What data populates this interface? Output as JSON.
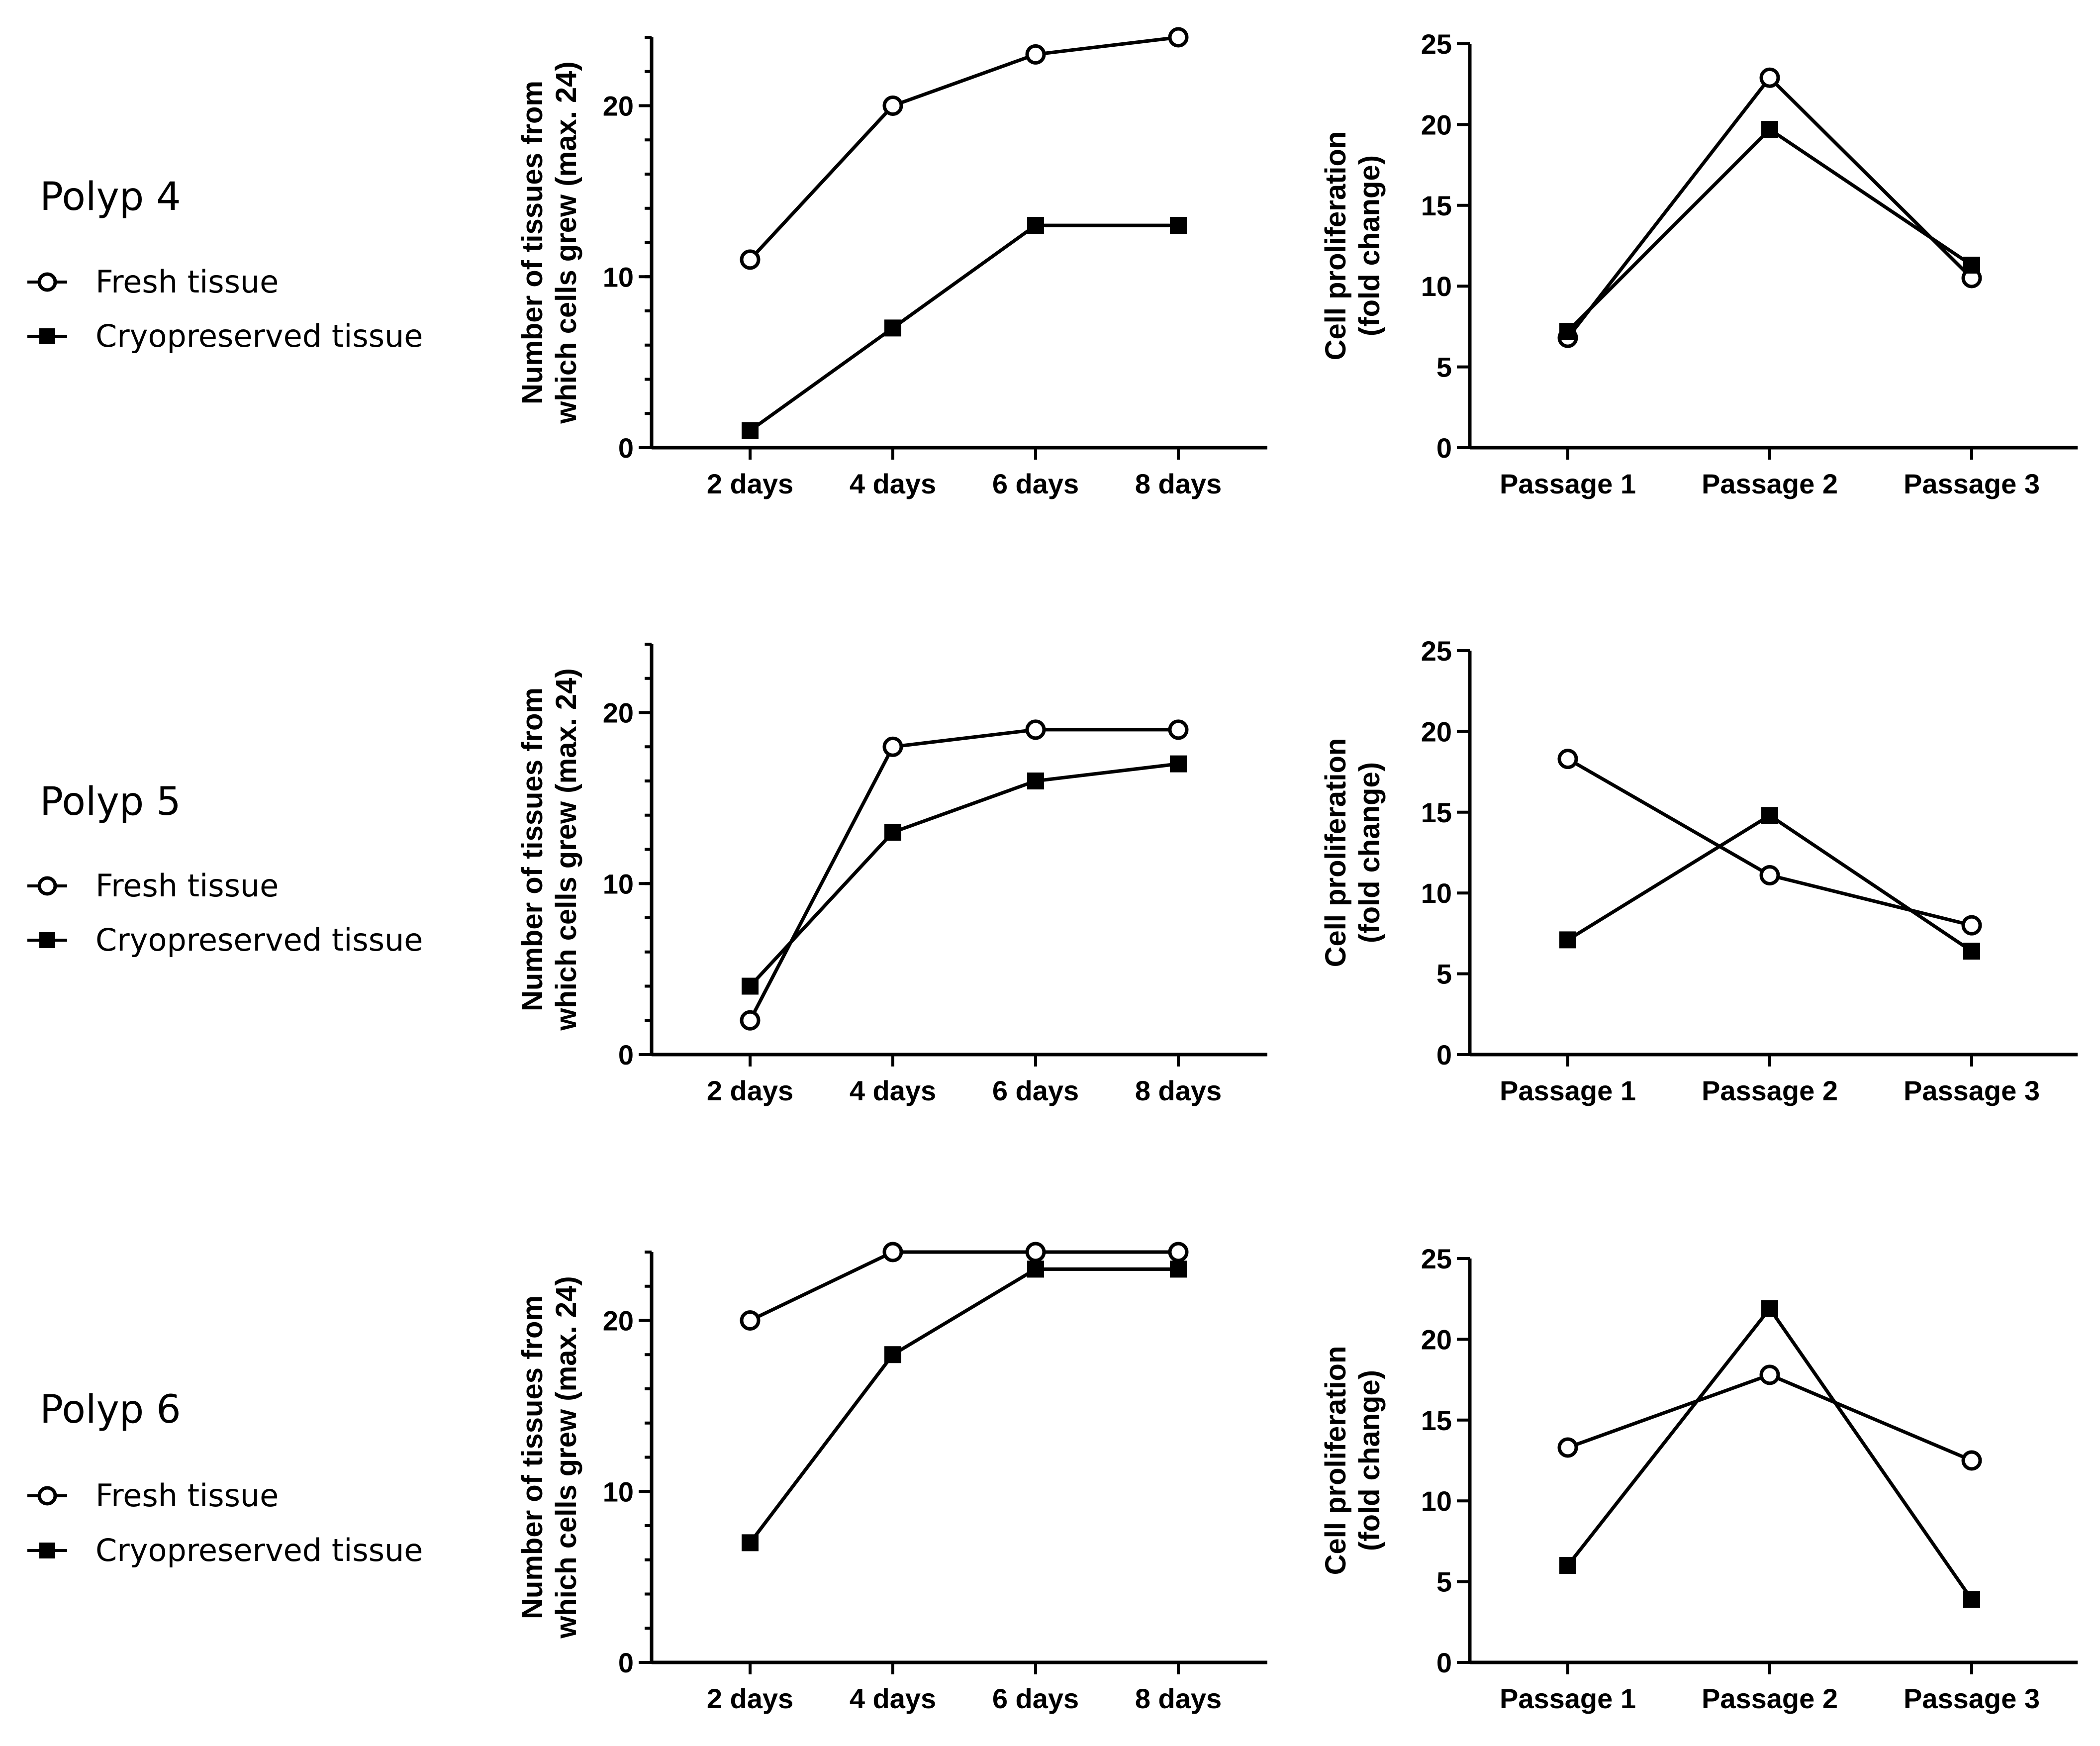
{
  "legend": {
    "fresh_label": "Fresh tissue",
    "cryo_label": "Cryopreserved tissue",
    "fresh_marker": "open-circle",
    "cryo_marker": "filled-square"
  },
  "rows": [
    {
      "label": "Polyp 4"
    },
    {
      "label": "Polyp 5"
    },
    {
      "label": "Polyp 6"
    }
  ],
  "chart_data": [
    {
      "id": "p4-growth",
      "type": "line",
      "row": 0,
      "panel": "growth",
      "title": "",
      "xlabel": "",
      "ylabel": [
        "Number of tissues from",
        "which cells grew (max. 24)"
      ],
      "categories": [
        "2 days",
        "4 days",
        "6 days",
        "8 days"
      ],
      "ylim": [
        0,
        24
      ],
      "yticks": [
        0,
        10,
        20
      ],
      "y_minor_step": 2,
      "series": [
        {
          "name": "Fresh tissue",
          "marker": "open-circle",
          "values": [
            11,
            20,
            23,
            24
          ]
        },
        {
          "name": "Cryopreserved tissue",
          "marker": "filled-square",
          "values": [
            1,
            7,
            13,
            13
          ]
        }
      ]
    },
    {
      "id": "p4-prolif",
      "type": "line",
      "row": 0,
      "panel": "prolif",
      "title": "",
      "xlabel": "",
      "ylabel": [
        "Cell proliferation",
        "(fold change)"
      ],
      "categories": [
        "Passage 1",
        "Passage 2",
        "Passage 3"
      ],
      "ylim": [
        0,
        25
      ],
      "yticks": [
        0,
        5,
        10,
        15,
        20,
        25
      ],
      "y_minor_step": 0,
      "series": [
        {
          "name": "Fresh tissue",
          "marker": "open-circle",
          "values": [
            6.8,
            22.9,
            10.5
          ]
        },
        {
          "name": "Cryopreserved tissue",
          "marker": "filled-square",
          "values": [
            7.2,
            19.7,
            11.3
          ]
        }
      ]
    },
    {
      "id": "p5-growth",
      "type": "line",
      "row": 1,
      "panel": "growth",
      "title": "",
      "xlabel": "",
      "ylabel": [
        "Number of tissues from",
        "which cells grew (max. 24)"
      ],
      "categories": [
        "2 days",
        "4 days",
        "6 days",
        "8 days"
      ],
      "ylim": [
        0,
        24
      ],
      "yticks": [
        0,
        10,
        20
      ],
      "y_minor_step": 2,
      "series": [
        {
          "name": "Fresh tissue",
          "marker": "open-circle",
          "values": [
            2,
            18,
            19,
            19
          ]
        },
        {
          "name": "Cryopreserved tissue",
          "marker": "filled-square",
          "values": [
            4,
            13,
            16,
            17
          ]
        }
      ]
    },
    {
      "id": "p5-prolif",
      "type": "line",
      "row": 1,
      "panel": "prolif",
      "title": "",
      "xlabel": "",
      "ylabel": [
        "Cell proliferation",
        "(fold change)"
      ],
      "categories": [
        "Passage 1",
        "Passage 2",
        "Passage 3"
      ],
      "ylim": [
        0,
        25
      ],
      "yticks": [
        0,
        5,
        10,
        15,
        20,
        25
      ],
      "y_minor_step": 0,
      "series": [
        {
          "name": "Fresh tissue",
          "marker": "open-circle",
          "values": [
            18.3,
            11.1,
            8.0
          ]
        },
        {
          "name": "Cryopreserved tissue",
          "marker": "filled-square",
          "values": [
            7.1,
            14.8,
            6.4
          ]
        }
      ]
    },
    {
      "id": "p6-growth",
      "type": "line",
      "row": 2,
      "panel": "growth",
      "title": "",
      "xlabel": "",
      "ylabel": [
        "Number of tissues from",
        "which cells grew (max. 24)"
      ],
      "categories": [
        "2 days",
        "4 days",
        "6 days",
        "8 days"
      ],
      "ylim": [
        0,
        24
      ],
      "yticks": [
        0,
        10,
        20
      ],
      "y_minor_step": 2,
      "series": [
        {
          "name": "Fresh tissue",
          "marker": "open-circle",
          "values": [
            20,
            24,
            24,
            24
          ]
        },
        {
          "name": "Cryopreserved tissue",
          "marker": "filled-square",
          "values": [
            7,
            18,
            23,
            23
          ]
        }
      ]
    },
    {
      "id": "p6-prolif",
      "type": "line",
      "row": 2,
      "panel": "prolif",
      "title": "",
      "xlabel": "",
      "ylabel": [
        "Cell proliferation",
        "(fold change)"
      ],
      "categories": [
        "Passage 1",
        "Passage 2",
        "Passage 3"
      ],
      "ylim": [
        0,
        25
      ],
      "yticks": [
        0,
        5,
        10,
        15,
        20,
        25
      ],
      "y_minor_step": 0,
      "series": [
        {
          "name": "Fresh tissue",
          "marker": "open-circle",
          "values": [
            13.3,
            17.8,
            12.5
          ]
        },
        {
          "name": "Cryopreserved tissue",
          "marker": "filled-square",
          "values": [
            6.0,
            21.9,
            3.9
          ]
        }
      ]
    }
  ]
}
